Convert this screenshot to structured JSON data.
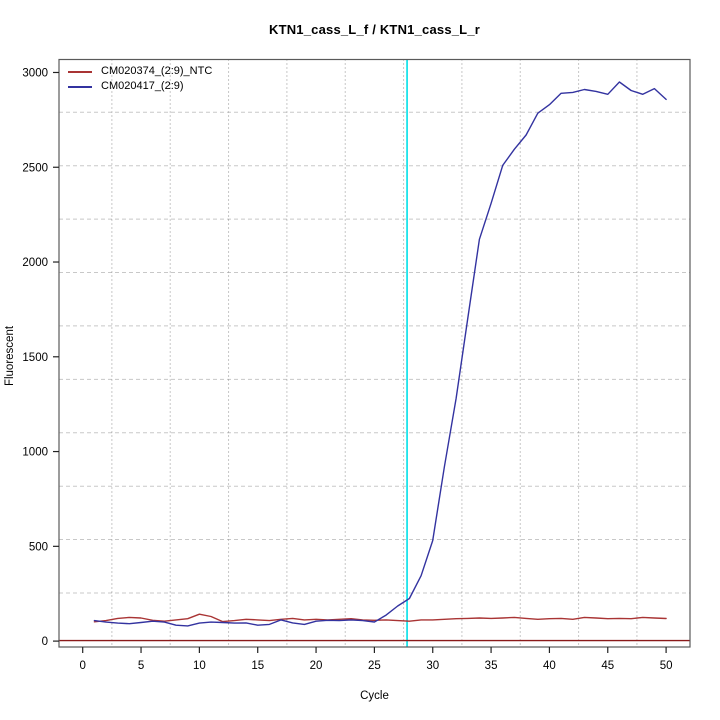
{
  "title": "KTN1_cass_L_f / KTN1_cass_L_r",
  "legend": {
    "entries": [
      {
        "label": "CM020374_(2:9)_NTC",
        "color": "#A93434"
      },
      {
        "label": "CM020417_(2:9)",
        "color": "#3333A0"
      }
    ]
  },
  "colors": {
    "ntc_series": "#A93434",
    "sample_series": "#3333A0",
    "zero_line": "#8B1A1A",
    "ct_marker": "#00E0E8",
    "h_grid": "#c8c8c8",
    "v_grid": "#909090",
    "box": "#5a5a5a"
  },
  "chart_data": {
    "type": "line",
    "title": "KTN1_cass_L_f / KTN1_cass_L_r",
    "xlabel": "Cycle",
    "ylabel": "Fluorescent",
    "xlim": [
      -2,
      52
    ],
    "ylim": [
      -30,
      3060
    ],
    "x_ticks": [
      0,
      5,
      10,
      15,
      20,
      25,
      30,
      35,
      40,
      45,
      50
    ],
    "y_ticks": [
      0,
      500,
      1000,
      1500,
      2000,
      2500,
      3000
    ],
    "grid": {
      "h_values": [
        254,
        536,
        817,
        1099,
        1381,
        1663,
        1945,
        2226,
        2508,
        2790
      ],
      "v_values": [
        2.5,
        7.5,
        12.5,
        17.5,
        22.5,
        27.5,
        32.5,
        37.5,
        42.5,
        47.5
      ]
    },
    "x": [
      1,
      2,
      3,
      4,
      5,
      6,
      7,
      8,
      9,
      10,
      11,
      12,
      13,
      14,
      15,
      16,
      17,
      18,
      19,
      20,
      21,
      22,
      23,
      24,
      25,
      26,
      27,
      28,
      29,
      30,
      31,
      32,
      33,
      34,
      35,
      36,
      37,
      38,
      39,
      40,
      41,
      42,
      43,
      44,
      45,
      46,
      47,
      48,
      49,
      50
    ],
    "series": [
      {
        "name": "CM020374_(2:9)_NTC",
        "color": "#A93434",
        "values": [
          102,
          108,
          120,
          125,
          122,
          110,
          105,
          112,
          118,
          142,
          130,
          103,
          108,
          115,
          112,
          108,
          115,
          120,
          112,
          115,
          112,
          115,
          118,
          112,
          110,
          112,
          108,
          105,
          112,
          112,
          115,
          118,
          120,
          122,
          120,
          122,
          125,
          120,
          115,
          118,
          120,
          115,
          125,
          122,
          118,
          120,
          118,
          125,
          122,
          119
        ]
      },
      {
        "name": "CM020417_(2:9)",
        "color": "#3333A0",
        "values": [
          108,
          100,
          95,
          92,
          98,
          105,
          100,
          84,
          80,
          95,
          100,
          98,
          95,
          96,
          84,
          88,
          112,
          96,
          88,
          105,
          110,
          108,
          112,
          108,
          101,
          137,
          185,
          225,
          345,
          530,
          920,
          1280,
          1700,
          2120,
          2310,
          2510,
          2595,
          2670,
          2785,
          2830,
          2890,
          2895,
          2910,
          2900,
          2885,
          2950,
          2905,
          2885,
          2915,
          2858
        ]
      }
    ],
    "zero_line": {
      "value": 3,
      "color": "#8B1A1A"
    },
    "ct_marker": {
      "cycle": 27.8,
      "color": "#00E0E8"
    },
    "legend_position": "top-left",
    "grid_on": true
  }
}
